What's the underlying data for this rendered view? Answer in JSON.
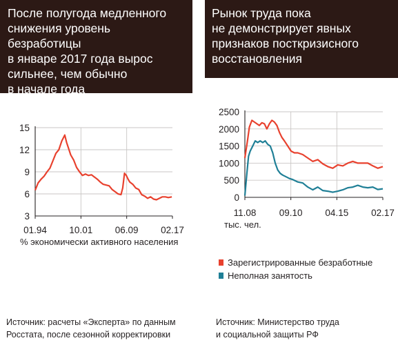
{
  "colors": {
    "header_bg": "#2c1915",
    "red": "#e8412e",
    "teal": "#1f7f96",
    "axis": "#231f20",
    "grid": "#c9c6c4"
  },
  "left": {
    "header_text": "После полугода медленного\nснижения уровень безработицы\nв январе 2017 года вырос\nсильнее, чем обычно\nв начале года",
    "axis_note": "% экономически активного населения",
    "source": "Источник: расчеты «Эксперта» по данным\nРосстата, после сезонной корректировки"
  },
  "right": {
    "header_text": "Рынок труда пока\nне демонстрирует явных\nпризнаков посткризисного\nвосстановления",
    "axis_note": "тыс. чел.",
    "legend": [
      "Зарегистрированные безработные",
      "Неполная занятость"
    ],
    "source": "Источник: Министерство труда\nи социальной защиты РФ"
  },
  "chart_data": [
    {
      "type": "line",
      "title": "После полугода медленного снижения уровень безработицы в январе 2017 года вырос сильнее, чем обычно в начале года",
      "ylabel": "% экономически активного населения",
      "x_tick_labels": [
        "01.94",
        "10.01",
        "06.09",
        "02.17"
      ],
      "y_ticks": [
        3,
        6,
        9,
        12,
        15
      ],
      "ylim": [
        3,
        15
      ],
      "xlim": [
        1994.0,
        2017.2
      ],
      "grid": true,
      "series": [
        {
          "color": "#e8412e",
          "x": [
            1994.0,
            1994.5,
            1995.0,
            1995.5,
            1996.0,
            1996.5,
            1997.0,
            1997.5,
            1998.0,
            1998.5,
            1999.0,
            1999.3,
            1999.6,
            2000.0,
            2000.5,
            2001.0,
            2001.5,
            2002.0,
            2002.5,
            2003.0,
            2003.5,
            2004.0,
            2004.5,
            2005.0,
            2005.5,
            2006.0,
            2006.5,
            2007.0,
            2007.5,
            2008.0,
            2008.5,
            2008.8,
            2009.1,
            2009.4,
            2009.7,
            2010.0,
            2010.5,
            2011.0,
            2011.5,
            2012.0,
            2012.5,
            2013.0,
            2013.5,
            2014.0,
            2014.5,
            2015.0,
            2015.5,
            2016.0,
            2016.5,
            2017.1
          ],
          "y": [
            6.5,
            7.5,
            8.0,
            8.4,
            9.0,
            9.5,
            10.5,
            11.5,
            12.0,
            13.2,
            14.0,
            13.0,
            12.3,
            11.3,
            10.6,
            9.6,
            9.0,
            8.5,
            8.7,
            8.5,
            8.6,
            8.3,
            8.0,
            7.6,
            7.3,
            7.2,
            7.1,
            6.6,
            6.3,
            6.0,
            5.9,
            6.8,
            8.8,
            8.5,
            8.0,
            7.6,
            7.3,
            6.8,
            6.6,
            5.9,
            5.7,
            5.4,
            5.6,
            5.3,
            5.2,
            5.4,
            5.6,
            5.6,
            5.5,
            5.6
          ]
        }
      ]
    },
    {
      "type": "line",
      "title": "Рынок труда пока не демонстрирует явных признаков посткризисного восстановления",
      "ylabel": "тыс. чел.",
      "x_tick_labels": [
        "11.08",
        "09.10",
        "04.15",
        "02.17"
      ],
      "y_ticks": [
        0,
        500,
        1000,
        1500,
        2000,
        2500
      ],
      "ylim": [
        0,
        2500
      ],
      "xlim": [
        2008.83,
        2017.1
      ],
      "grid": true,
      "legend": "bottom",
      "series": [
        {
          "name": "Зарегистрированные безработные",
          "color": "#e8412e",
          "x": [
            2008.83,
            2009.0,
            2009.1,
            2009.25,
            2009.4,
            2009.55,
            2009.7,
            2009.85,
            2010.0,
            2010.15,
            2010.3,
            2010.45,
            2010.6,
            2010.75,
            2010.9,
            2011.05,
            2011.2,
            2011.4,
            2011.6,
            2011.8,
            2012.0,
            2012.3,
            2012.6,
            2012.9,
            2013.2,
            2013.5,
            2013.8,
            2014.1,
            2014.4,
            2014.7,
            2015.0,
            2015.3,
            2015.6,
            2015.9,
            2016.2,
            2016.5,
            2016.8,
            2017.1
          ],
          "y": [
            1150,
            1700,
            2050,
            2250,
            2200,
            2150,
            2100,
            2180,
            2150,
            2000,
            2150,
            2250,
            2200,
            2100,
            1900,
            1750,
            1650,
            1500,
            1350,
            1300,
            1300,
            1250,
            1150,
            1050,
            1100,
            980,
            900,
            850,
            950,
            920,
            1000,
            1050,
            1000,
            1000,
            1000,
            920,
            850,
            900
          ]
        },
        {
          "name": "Неполная занятость",
          "color": "#1f7f96",
          "x": [
            2008.83,
            2008.95,
            2009.05,
            2009.15,
            2009.3,
            2009.45,
            2009.6,
            2009.75,
            2009.9,
            2010.05,
            2010.2,
            2010.35,
            2010.5,
            2010.65,
            2010.8,
            2010.95,
            2011.1,
            2011.3,
            2011.5,
            2011.7,
            2012.0,
            2012.3,
            2012.6,
            2012.9,
            2013.2,
            2013.5,
            2013.8,
            2014.1,
            2014.4,
            2014.7,
            2015.0,
            2015.3,
            2015.6,
            2015.9,
            2016.2,
            2016.5,
            2016.8,
            2017.1
          ],
          "y": [
            50,
            700,
            1200,
            1350,
            1500,
            1650,
            1600,
            1650,
            1600,
            1650,
            1550,
            1500,
            1300,
            1000,
            800,
            700,
            650,
            600,
            550,
            520,
            450,
            420,
            300,
            220,
            300,
            200,
            180,
            150,
            180,
            220,
            280,
            300,
            350,
            300,
            280,
            300,
            230,
            250
          ]
        }
      ]
    }
  ]
}
